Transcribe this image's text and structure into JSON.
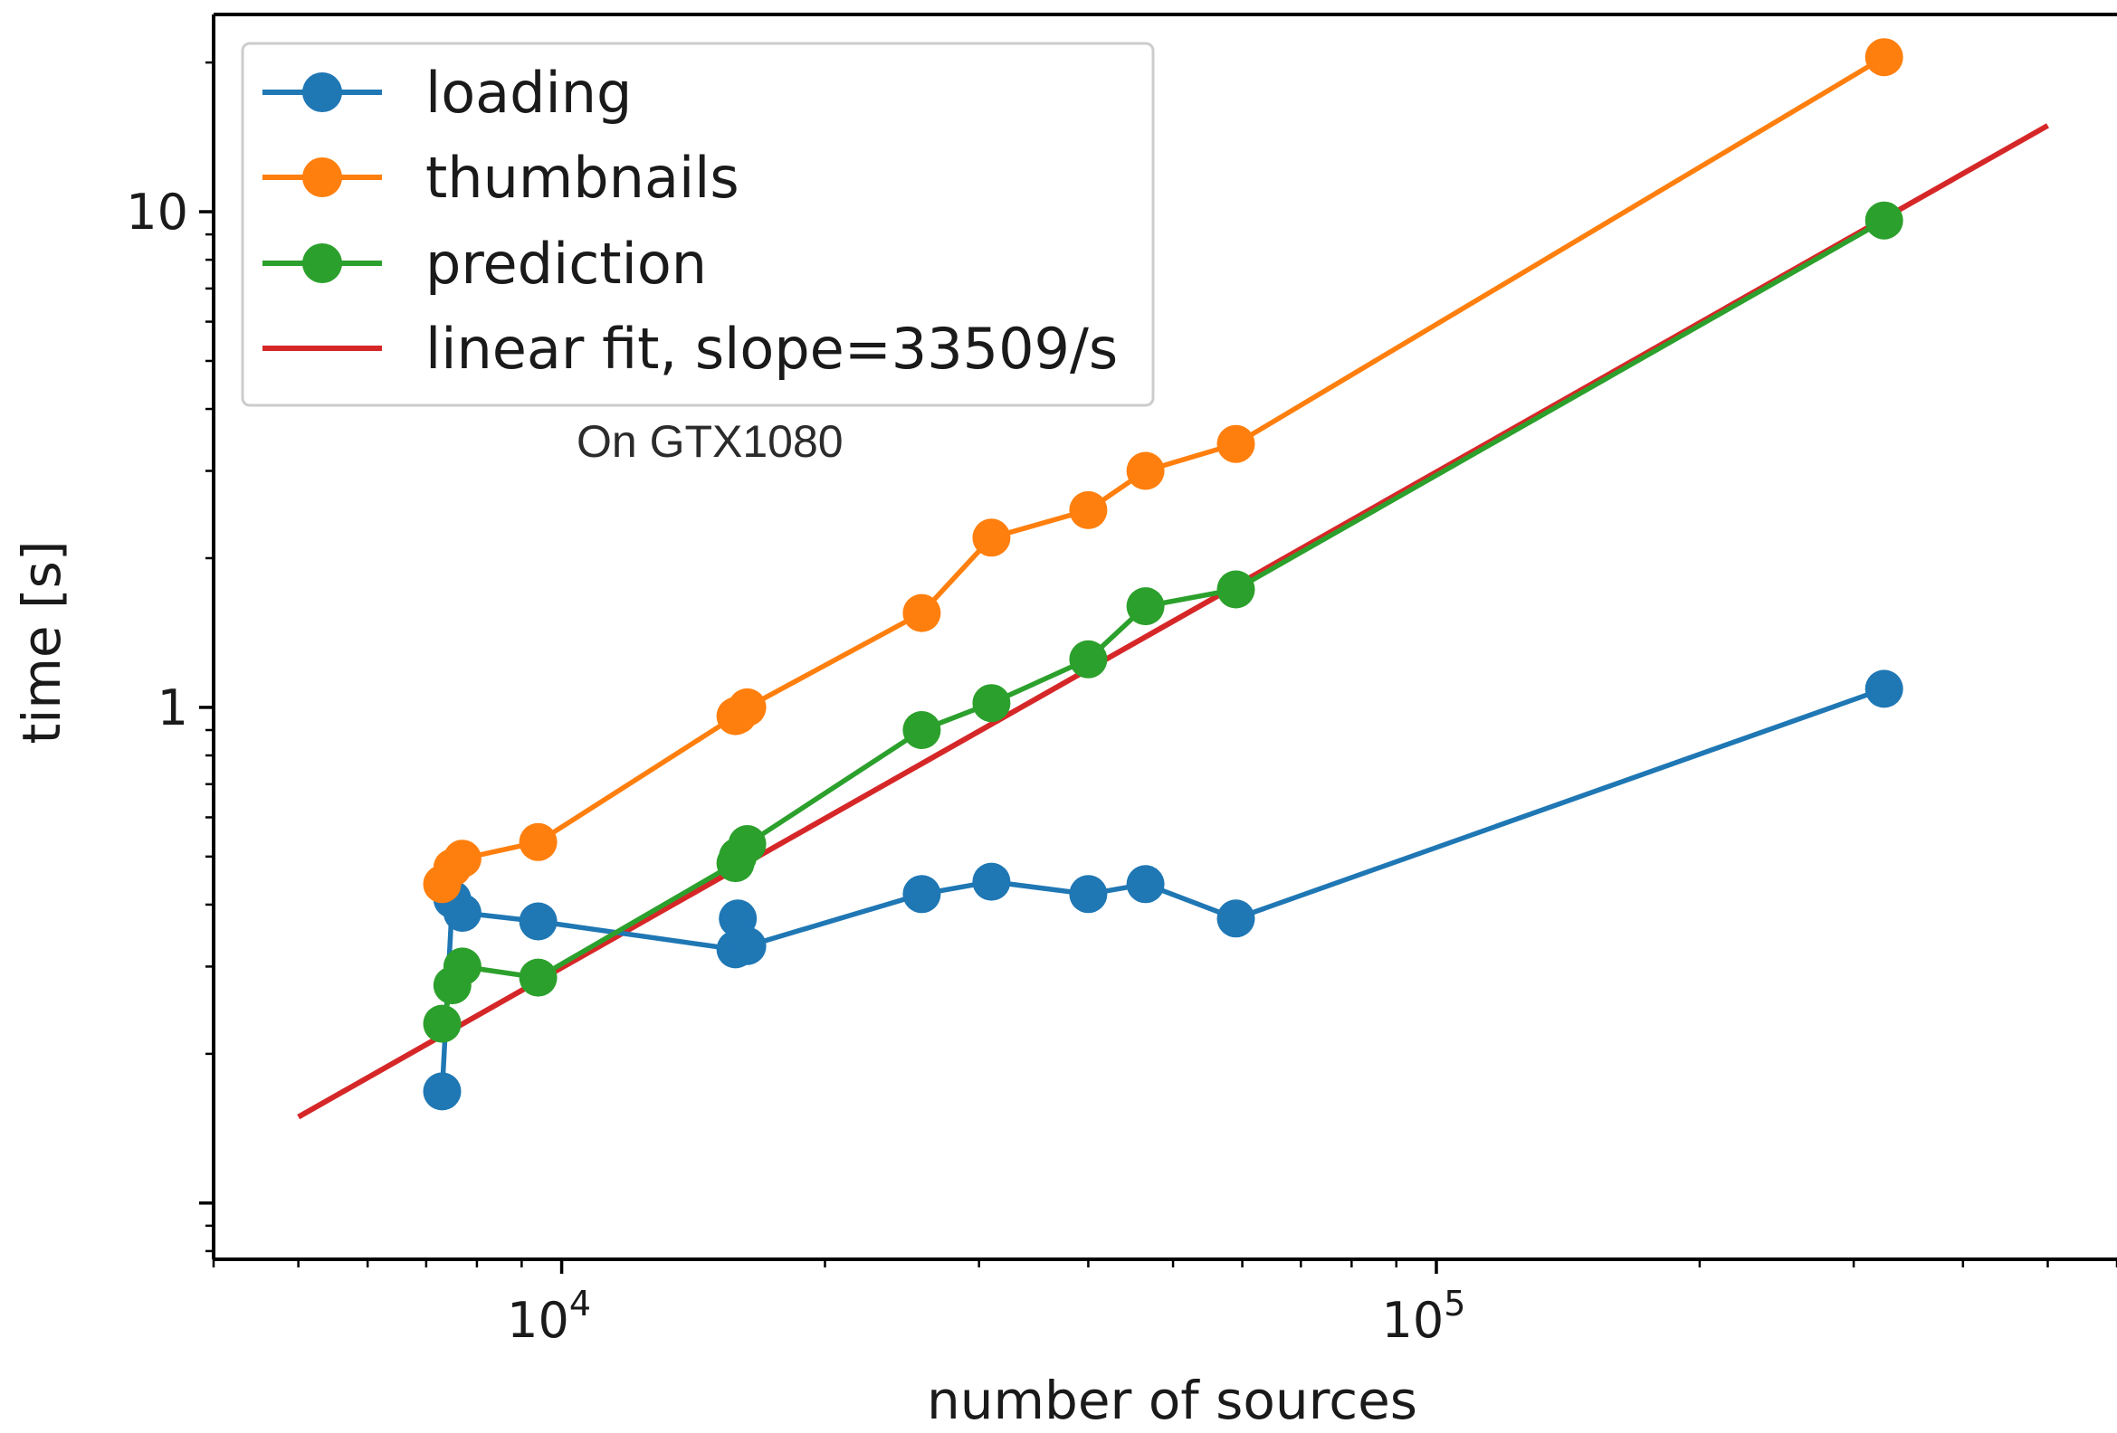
{
  "chart_data": {
    "type": "line",
    "xlabel": "number of sources",
    "ylabel": "time [s]",
    "xscale": "log",
    "yscale": "log",
    "xlim": [
      4000,
      600000
    ],
    "ylim": [
      0.077,
      25
    ],
    "grid": false,
    "legend_position": "top-left",
    "x_ticks": [
      {
        "value": 10000,
        "base": "10",
        "exp": "4"
      },
      {
        "value": 100000,
        "base": "10",
        "exp": "5"
      }
    ],
    "y_ticks": [
      {
        "value": 1,
        "label": "1"
      },
      {
        "value": 10,
        "label": "10"
      }
    ],
    "series": [
      {
        "name": "loading",
        "color": "#1f77b4",
        "marker": "circle",
        "x": [
          7300,
          7500,
          7700,
          9400,
          15800,
          15900,
          16300,
          25800,
          31000,
          40000,
          46500,
          59000,
          325000
        ],
        "y": [
          0.168,
          0.41,
          0.385,
          0.37,
          0.325,
          0.375,
          0.33,
          0.42,
          0.445,
          0.42,
          0.44,
          0.375,
          1.09
        ]
      },
      {
        "name": "thumbnails",
        "color": "#ff7f0e",
        "marker": "circle",
        "x": [
          7300,
          7500,
          7700,
          9400,
          15800,
          15900,
          16300,
          25800,
          31000,
          40000,
          46500,
          59000,
          325000
        ],
        "y": [
          0.44,
          0.475,
          0.495,
          0.535,
          0.96,
          0.965,
          1.0,
          1.55,
          2.2,
          2.5,
          3.0,
          3.4,
          20.5
        ]
      },
      {
        "name": "prediction",
        "color": "#2ca02c",
        "marker": "circle",
        "x": [
          7300,
          7500,
          7700,
          9400,
          15800,
          15900,
          16300,
          25800,
          31000,
          40000,
          46500,
          59000,
          325000
        ],
        "y": [
          0.23,
          0.275,
          0.3,
          0.285,
          0.485,
          0.5,
          0.53,
          0.9,
          1.02,
          1.25,
          1.6,
          1.73,
          9.6
        ]
      },
      {
        "name": "linear fit, slope=33509/s",
        "color": "#d62728",
        "marker": "none",
        "x": [
          5000,
          500000
        ],
        "y": [
          0.1492,
          14.92
        ]
      }
    ],
    "annotation": "On GTX1080"
  }
}
